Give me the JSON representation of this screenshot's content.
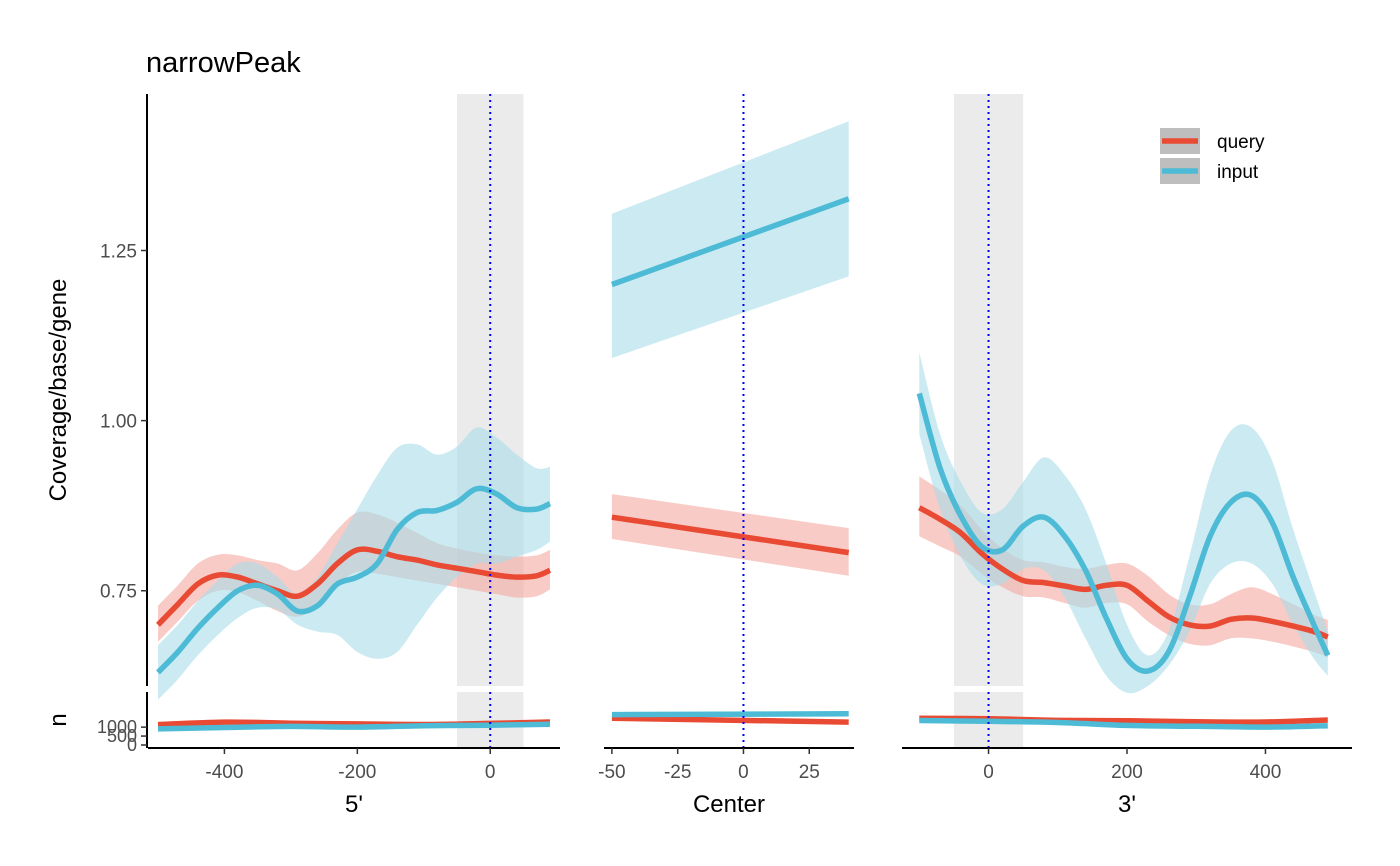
{
  "chart_data": {
    "type": "line",
    "title": "narrowPeak",
    "ylabel": "Coverage/base/gene",
    "n_ylabel": "n",
    "yticks": [
      0.75,
      1.0,
      1.25
    ],
    "ytick_labels": [
      "0.75",
      "1.00",
      "1.25"
    ],
    "ylim": [
      0.61,
      1.48
    ],
    "n_yticks": [
      0,
      500,
      1000
    ],
    "n_ytick_labels": [
      "0",
      "500",
      "1000"
    ],
    "n_ylim": [
      0,
      2800
    ],
    "legend": {
      "position": "top-right",
      "entries": [
        {
          "label": "query",
          "color": "#E84A33"
        },
        {
          "label": "input",
          "color": "#4DBBD5"
        }
      ]
    },
    "colors": {
      "query": "#E84A33",
      "input": "#4DBBD5",
      "query_band": "#F4A9A0",
      "input_band": "#A8DCEA",
      "shade": "#EBEBEB",
      "vline": "#0000FF"
    },
    "panels": [
      {
        "id": "five",
        "xlabel": "5'",
        "xlim": [
          -515,
          105
        ],
        "xticks": [
          -400,
          -200,
          0
        ],
        "xtick_labels": [
          "-400",
          "-200",
          "0"
        ],
        "shade": [
          -50,
          50
        ],
        "series": [
          {
            "name": "query",
            "x": [
              -500,
              -470,
              -440,
              -410,
              -380,
              -350,
              -320,
              -290,
              -260,
              -230,
              -200,
              -170,
              -140,
              -110,
              -80,
              -50,
              -20,
              10,
              40,
              70,
              90
            ],
            "y": [
              0.7,
              0.73,
              0.76,
              0.773,
              0.77,
              0.76,
              0.75,
              0.742,
              0.76,
              0.79,
              0.81,
              0.808,
              0.8,
              0.795,
              0.788,
              0.783,
              0.778,
              0.773,
              0.77,
              0.772,
              0.78
            ],
            "lower": [
              0.675,
              0.705,
              0.735,
              0.75,
              0.748,
              0.735,
              0.72,
              0.712,
              0.728,
              0.76,
              0.778,
              0.775,
              0.77,
              0.765,
              0.76,
              0.755,
              0.75,
              0.745,
              0.74,
              0.742,
              0.752
            ],
            "upper": [
              0.728,
              0.758,
              0.79,
              0.803,
              0.802,
              0.795,
              0.79,
              0.78,
              0.805,
              0.84,
              0.865,
              0.862,
              0.85,
              0.835,
              0.82,
              0.812,
              0.806,
              0.802,
              0.8,
              0.802,
              0.81
            ]
          },
          {
            "name": "input",
            "x": [
              -500,
              -470,
              -440,
              -410,
              -380,
              -350,
              -320,
              -290,
              -260,
              -230,
              -200,
              -170,
              -140,
              -110,
              -80,
              -50,
              -20,
              10,
              40,
              70,
              90
            ],
            "y": [
              0.63,
              0.66,
              0.695,
              0.725,
              0.75,
              0.758,
              0.745,
              0.72,
              0.728,
              0.76,
              0.77,
              0.79,
              0.84,
              0.865,
              0.868,
              0.88,
              0.9,
              0.892,
              0.872,
              0.87,
              0.878
            ],
            "lower": [
              0.59,
              0.62,
              0.655,
              0.685,
              0.71,
              0.725,
              0.722,
              0.7,
              0.69,
              0.685,
              0.66,
              0.65,
              0.66,
              0.7,
              0.74,
              0.77,
              0.79,
              0.79,
              0.8,
              0.81,
              0.822
            ],
            "upper": [
              0.67,
              0.7,
              0.735,
              0.765,
              0.79,
              0.79,
              0.77,
              0.745,
              0.77,
              0.82,
              0.87,
              0.92,
              0.96,
              0.965,
              0.95,
              0.962,
              0.99,
              0.975,
              0.95,
              0.93,
              0.932
            ]
          }
        ],
        "n_series": [
          {
            "name": "query",
            "x": [
              -500,
              -400,
              -300,
              -200,
              -100,
              0,
              90
            ],
            "y": [
              1150,
              1280,
              1220,
              1180,
              1150,
              1210,
              1290
            ]
          },
          {
            "name": "input",
            "x": [
              -500,
              -400,
              -300,
              -200,
              -100,
              0,
              90
            ],
            "y": [
              900,
              980,
              1040,
              1000,
              1080,
              1110,
              1160
            ]
          }
        ]
      },
      {
        "id": "center",
        "xlabel": "Center",
        "xlim": [
          -53,
          42
        ],
        "xticks": [
          -50,
          -25,
          0,
          25
        ],
        "xtick_labels": [
          "-50",
          "-25",
          "0",
          "25"
        ],
        "shade": null,
        "series": [
          {
            "name": "query",
            "x": [
              -50,
              40
            ],
            "y": [
              0.858,
              0.806
            ],
            "lower": [
              0.826,
              0.772
            ],
            "upper": [
              0.892,
              0.842
            ]
          },
          {
            "name": "input",
            "x": [
              -50,
              40
            ],
            "y": [
              1.2,
              1.326
            ],
            "lower": [
              1.092,
              1.212
            ],
            "upper": [
              1.304,
              1.44
            ]
          }
        ],
        "n_series": [
          {
            "name": "query",
            "x": [
              -50,
              40
            ],
            "y": [
              1500,
              1280
            ]
          },
          {
            "name": "input",
            "x": [
              -50,
              40
            ],
            "y": [
              1700,
              1750
            ]
          }
        ]
      },
      {
        "id": "three",
        "xlabel": "3'",
        "xlim": [
          -125,
          525
        ],
        "xticks": [
          0,
          200,
          400
        ],
        "xtick_labels": [
          "0",
          "200",
          "400"
        ],
        "shade": [
          -50,
          50
        ],
        "series": [
          {
            "name": "query",
            "x": [
              -100,
              -70,
              -40,
              -10,
              20,
              50,
              80,
              110,
              140,
              170,
              200,
              230,
              260,
              290,
              320,
              350,
              380,
              410,
              440,
              470,
              490
            ],
            "y": [
              0.872,
              0.855,
              0.835,
              0.805,
              0.782,
              0.765,
              0.762,
              0.757,
              0.752,
              0.758,
              0.758,
              0.735,
              0.712,
              0.7,
              0.698,
              0.708,
              0.71,
              0.705,
              0.698,
              0.69,
              0.682
            ],
            "lower": [
              0.83,
              0.815,
              0.8,
              0.775,
              0.755,
              0.742,
              0.74,
              0.732,
              0.725,
              0.732,
              0.73,
              0.705,
              0.685,
              0.672,
              0.67,
              0.68,
              0.68,
              0.675,
              0.668,
              0.66,
              0.652
            ],
            "upper": [
              0.918,
              0.898,
              0.875,
              0.84,
              0.812,
              0.795,
              0.792,
              0.785,
              0.782,
              0.788,
              0.79,
              0.772,
              0.745,
              0.73,
              0.73,
              0.745,
              0.755,
              0.745,
              0.73,
              0.715,
              0.707
            ]
          },
          {
            "name": "input",
            "x": [
              -100,
              -70,
              -40,
              -10,
              20,
              50,
              80,
              110,
              140,
              170,
              200,
              230,
              260,
              290,
              320,
              350,
              380,
              410,
              440,
              470,
              490
            ],
            "y": [
              1.04,
              0.93,
              0.86,
              0.815,
              0.81,
              0.845,
              0.858,
              0.83,
              0.78,
              0.71,
              0.65,
              0.632,
              0.66,
              0.74,
              0.83,
              0.88,
              0.89,
              0.85,
              0.77,
              0.7,
              0.655
            ],
            "lower": [
              0.98,
              0.87,
              0.8,
              0.76,
              0.76,
              0.782,
              0.78,
              0.74,
              0.68,
              0.625,
              0.6,
              0.61,
              0.64,
              0.69,
              0.76,
              0.79,
              0.79,
              0.76,
              0.7,
              0.65,
              0.625
            ],
            "upper": [
              1.1,
              0.98,
              0.91,
              0.865,
              0.87,
              0.91,
              0.946,
              0.92,
              0.87,
              0.79,
              0.7,
              0.655,
              0.69,
              0.8,
              0.92,
              0.985,
              0.99,
              0.94,
              0.84,
              0.75,
              0.69
            ]
          }
        ],
        "n_series": [
          {
            "name": "query",
            "x": [
              -100,
              0,
              100,
              200,
              300,
              400,
              490
            ],
            "y": [
              1500,
              1470,
              1380,
              1360,
              1300,
              1290,
              1400
            ]
          },
          {
            "name": "input",
            "x": [
              -100,
              0,
              100,
              200,
              300,
              400,
              490
            ],
            "y": [
              1370,
              1330,
              1260,
              1100,
              1050,
              1000,
              1080
            ]
          }
        ]
      }
    ]
  }
}
